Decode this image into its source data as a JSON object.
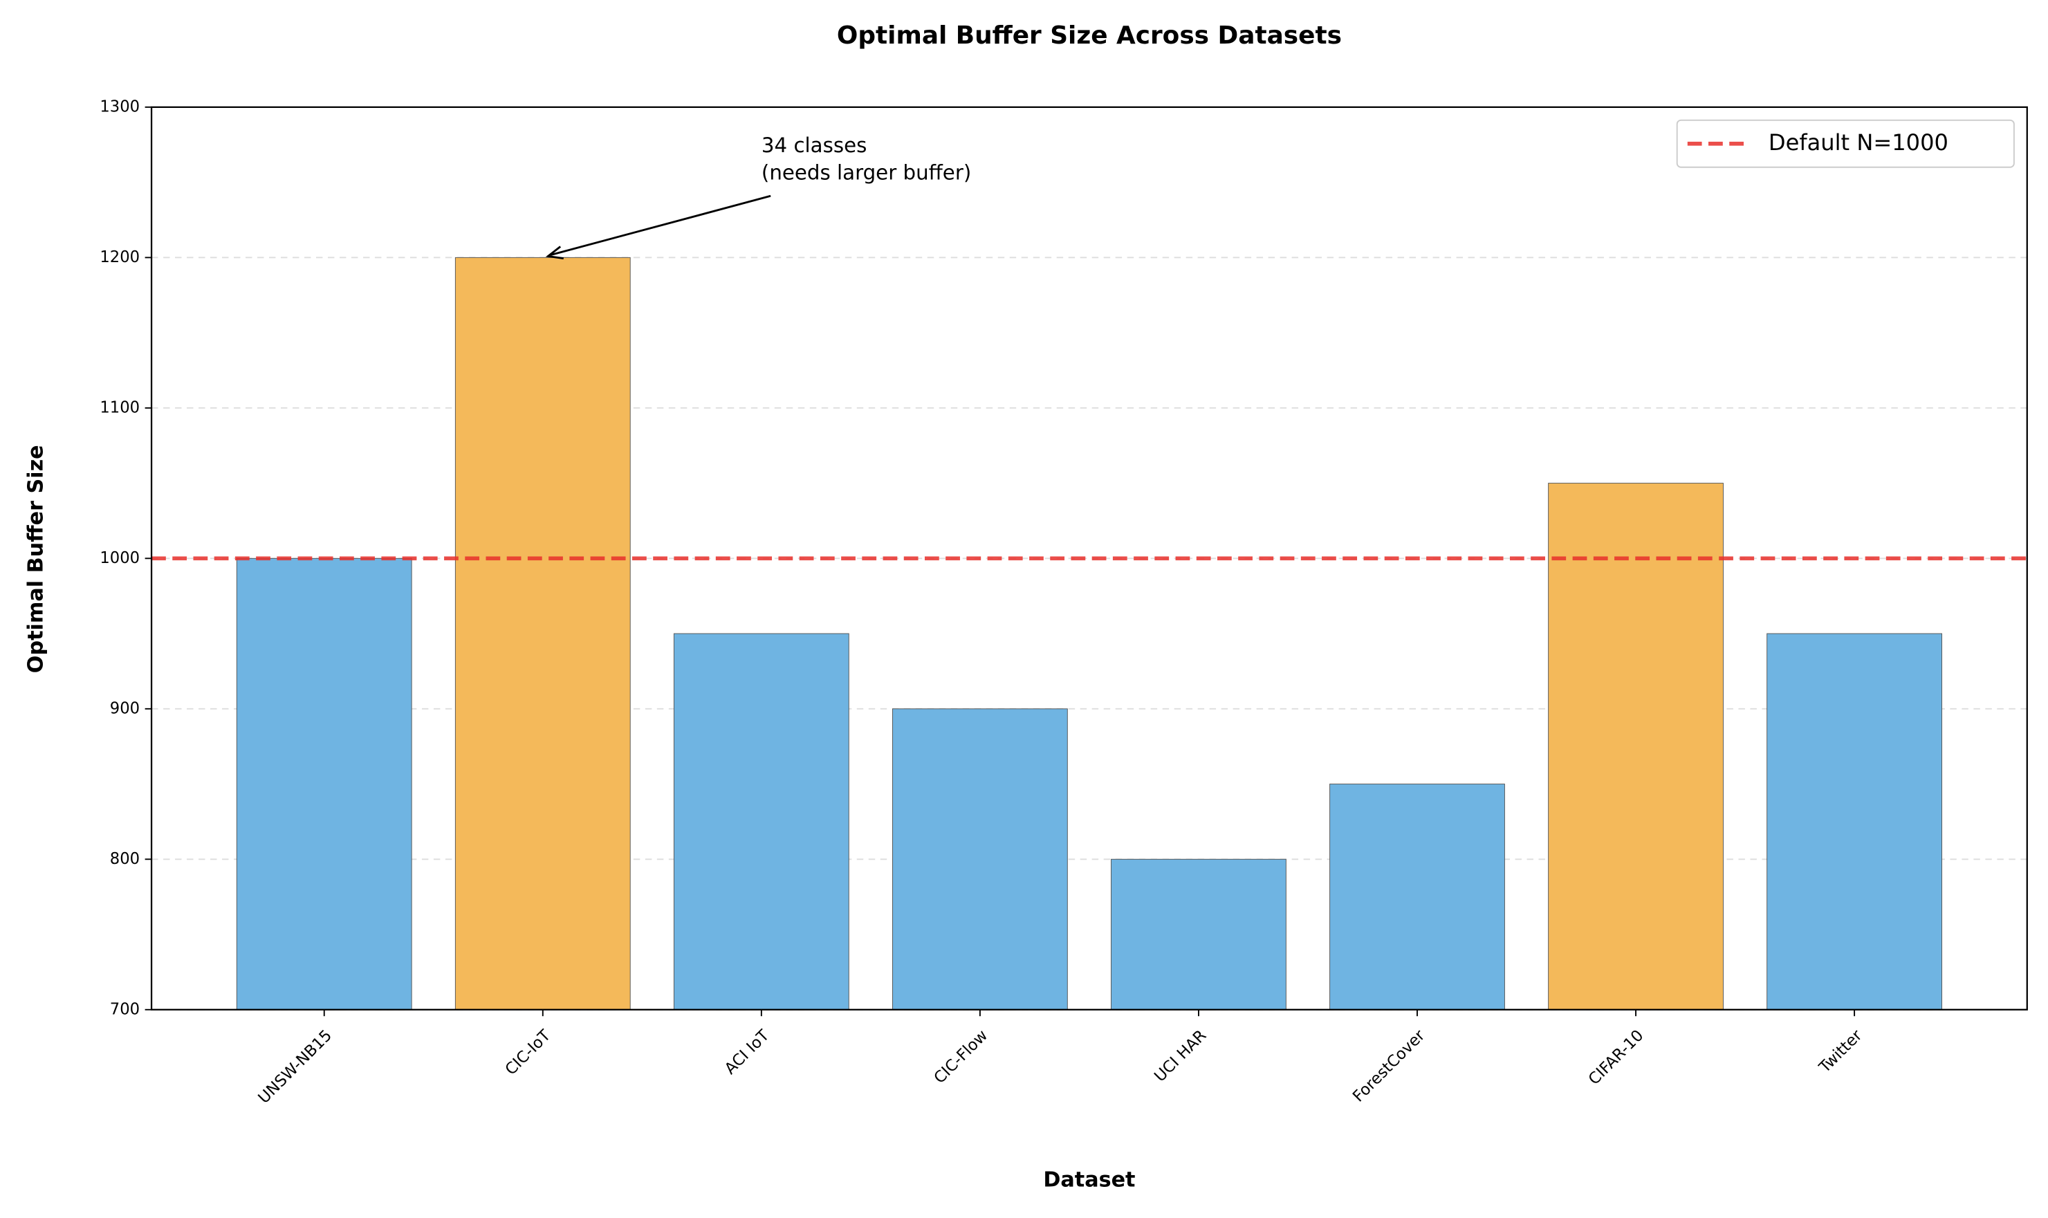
{
  "chart_data": {
    "type": "bar",
    "title": "Optimal Buffer Size Across Datasets",
    "xlabel": "Dataset",
    "ylabel": "Optimal Buffer Size",
    "categories": [
      "UNSW-NB15",
      "CIC-IoT",
      "ACI IoT",
      "CIC-Flow",
      "UCI HAR",
      "ForestCover",
      "CIFAR-10",
      "Twitter"
    ],
    "values": [
      1000,
      1200,
      950,
      900,
      800,
      850,
      1050,
      950
    ],
    "colors": [
      "#6fb4e2",
      "#f4b95a",
      "#6fb4e2",
      "#6fb4e2",
      "#6fb4e2",
      "#6fb4e2",
      "#f4b95a",
      "#6fb4e2"
    ],
    "ylim": [
      700,
      1300
    ],
    "yticks": [
      700,
      800,
      900,
      1000,
      1100,
      1200,
      1300
    ],
    "grid": true,
    "reference_line": {
      "name": "Default N=1000",
      "value": 1000,
      "color": "#e8302b"
    },
    "legend_position": "upper right",
    "annotation": {
      "text": [
        "34 classes",
        "(needs larger buffer)"
      ]
    }
  }
}
